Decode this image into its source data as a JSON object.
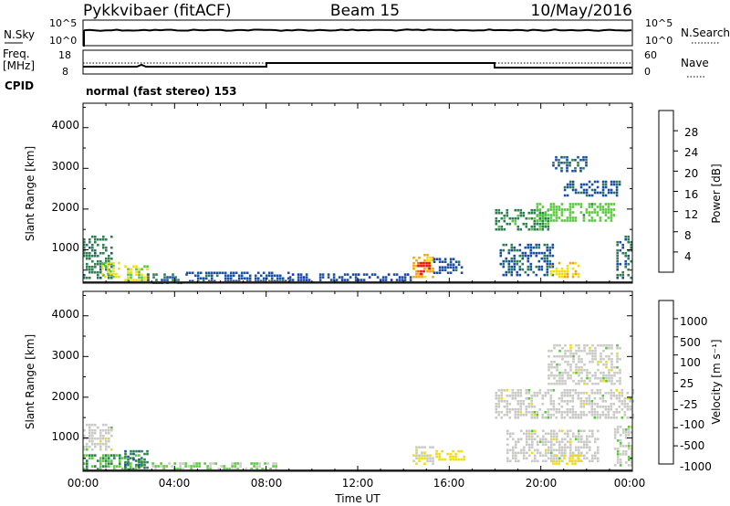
{
  "header": {
    "station": "Pykkvibaer (fitACF)",
    "beam": "Beam 15",
    "date": "10/May/2016"
  },
  "top_panels": {
    "nsky_label": "N.Sky",
    "nsearch_label": "N.Search",
    "freq_label": "Freq.",
    "freq_unit": "[MHz]",
    "nave_label": "Nave",
    "cpid_label": "CPID",
    "cpid_text": "normal (fast stereo) 153",
    "noise_ticks": [
      "10^5",
      "10^0"
    ],
    "freq_ticks": [
      "18",
      "8"
    ],
    "nave_ticks": [
      "60",
      "0"
    ]
  },
  "colorbars": {
    "power": {
      "label": "Power [dB]",
      "ticks": [
        "28",
        "24",
        "20",
        "16",
        "12",
        "8",
        "4"
      ],
      "colors": [
        "#1f2bd6",
        "#1a4fa6",
        "#2f7e52",
        "#58c83c",
        "#f0dc10",
        "#f2a40c",
        "#ee6a0c",
        "#e61414"
      ]
    },
    "velocity": {
      "label": "Velocity [m s⁻¹]",
      "ticks": [
        "1000",
        "500",
        "100",
        "25",
        "-25",
        "-100",
        "-500",
        "-1000"
      ],
      "colors": [
        "#1f2bd6",
        "#1a4fa6",
        "#2f7e52",
        "#58c83c",
        "#c9c9c5",
        "#f0dc10",
        "#f2a40c",
        "#ee6a0c",
        "#e61414"
      ]
    }
  },
  "axes": {
    "ylabel": "Slant Range [km]",
    "xlabel": "Time UT",
    "xticks": [
      "00:00",
      "04:00",
      "08:00",
      "12:00",
      "16:00",
      "20:00",
      "00:00"
    ],
    "yticks": [
      "4000",
      "3000",
      "2000",
      "1000"
    ]
  },
  "chart_data": [
    {
      "type": "heatmap",
      "name": "power",
      "xlabel": "Time UT",
      "ylabel": "Slant Range [km]",
      "xlim": [
        0,
        24
      ],
      "ylim": [
        180,
        4600
      ],
      "colorbar_range": [
        0,
        30
      ],
      "blobs": [
        {
          "t": [
            0.0,
            1.3
          ],
          "r": [
            300,
            1350
          ],
          "v": 9
        },
        {
          "t": [
            0.8,
            1.6
          ],
          "r": [
            350,
            700
          ],
          "v": 16
        },
        {
          "t": [
            1.8,
            2.8
          ],
          "r": [
            230,
            620
          ],
          "v": 15
        },
        {
          "t": [
            2.8,
            4.5
          ],
          "r": [
            200,
            420
          ],
          "v": 7
        },
        {
          "t": [
            4.5,
            9.0
          ],
          "r": [
            210,
            460
          ],
          "v": 6
        },
        {
          "t": [
            9.0,
            14.3
          ],
          "r": [
            220,
            420
          ],
          "v": 5
        },
        {
          "t": [
            14.4,
            15.3
          ],
          "r": [
            300,
            900
          ],
          "v": 20
        },
        {
          "t": [
            14.6,
            15.1
          ],
          "r": [
            400,
            700
          ],
          "v": 27
        },
        {
          "t": [
            15.3,
            16.6
          ],
          "r": [
            400,
            800
          ],
          "v": 6
        },
        {
          "t": [
            18.0,
            20.3
          ],
          "r": [
            1500,
            2000
          ],
          "v": 10
        },
        {
          "t": [
            18.2,
            20.5
          ],
          "r": [
            350,
            1150
          ],
          "v": 7
        },
        {
          "t": [
            19.8,
            23.2
          ],
          "r": [
            1700,
            2150
          ],
          "v": 13
        },
        {
          "t": [
            21.0,
            23.5
          ],
          "r": [
            2300,
            2700
          ],
          "v": 6
        },
        {
          "t": [
            20.5,
            22.0
          ],
          "r": [
            2950,
            3300
          ],
          "v": 7
        },
        {
          "t": [
            20.4,
            21.6
          ],
          "r": [
            300,
            700
          ],
          "v": 18
        },
        {
          "t": [
            23.3,
            24.0
          ],
          "r": [
            300,
            1350
          ],
          "v": 8
        }
      ]
    },
    {
      "type": "heatmap",
      "name": "velocity",
      "xlabel": "Time UT",
      "ylabel": "Slant Range [km]",
      "xlim": [
        0,
        24
      ],
      "ylim": [
        180,
        4600
      ],
      "colorbar_range": [
        -1000,
        1000
      ],
      "blobs": [
        {
          "t": [
            0.0,
            1.3
          ],
          "r": [
            700,
            1350
          ],
          "v": 0
        },
        {
          "t": [
            0.0,
            2.6
          ],
          "r": [
            200,
            600
          ],
          "v": -300
        },
        {
          "t": [
            1.8,
            2.8
          ],
          "r": [
            200,
            700
          ],
          "v": -500
        },
        {
          "t": [
            3.0,
            8.5
          ],
          "r": [
            200,
            400
          ],
          "v": -150
        },
        {
          "t": [
            14.4,
            15.3
          ],
          "r": [
            350,
            800
          ],
          "v": 60
        },
        {
          "t": [
            15.4,
            16.6
          ],
          "r": [
            450,
            700
          ],
          "v": 200
        },
        {
          "t": [
            18.0,
            24.0
          ],
          "r": [
            1500,
            2200
          ],
          "v": 0
        },
        {
          "t": [
            20.3,
            23.5
          ],
          "r": [
            2300,
            3300
          ],
          "v": 0
        },
        {
          "t": [
            18.5,
            22.5
          ],
          "r": [
            400,
            1200
          ],
          "v": 0
        },
        {
          "t": [
            20.5,
            21.8
          ],
          "r": [
            350,
            600
          ],
          "v": 200
        },
        {
          "t": [
            23.2,
            24.0
          ],
          "r": [
            300,
            1300
          ],
          "v": 0
        }
      ]
    }
  ]
}
